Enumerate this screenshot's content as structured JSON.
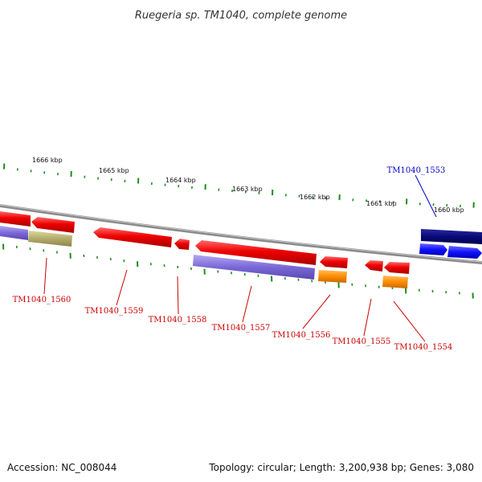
{
  "title": "Ruegeria sp. TM1040, complete genome",
  "footer": {
    "accession": "Accession: NC_008044",
    "topology": "Topology: circular; Length: 3,200,938 bp; Genes: 3,080"
  },
  "colors": {
    "backbone": "#8a8a8a",
    "tick": "#1e8c1e",
    "label_forward": "#0000cc",
    "label_reverse": "#cc0000",
    "leader_forward": "#0000cc",
    "leader_reverse": "#cc0000"
  },
  "scale_labels": [
    "1666 kbp",
    "1665 kbp",
    "1664 kbp",
    "1663 kbp",
    "1662 kbp",
    "1661 kbp",
    "1660 kbp"
  ],
  "gene_labels": [
    {
      "name": "TM1040_1553",
      "strand": "forward"
    },
    {
      "name": "TM1040_1560",
      "strand": "reverse"
    },
    {
      "name": "TM1040_1559",
      "strand": "reverse"
    },
    {
      "name": "TM1040_1558",
      "strand": "reverse"
    },
    {
      "name": "TM1040_1557",
      "strand": "reverse"
    },
    {
      "name": "TM1040_1556",
      "strand": "reverse"
    },
    {
      "name": "TM1040_1555",
      "strand": "reverse"
    },
    {
      "name": "TM1040_1554",
      "strand": "reverse"
    }
  ]
}
